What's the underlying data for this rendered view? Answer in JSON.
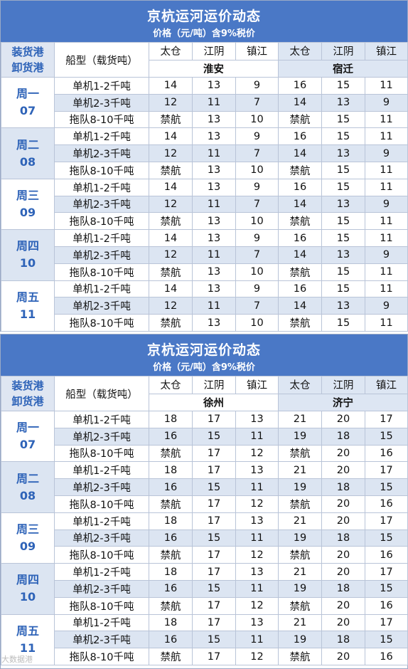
{
  "header_labels": {
    "port_label_1": "装货港",
    "port_label_2": "卸货港",
    "ship_type": "船型（载货吨）",
    "load_ports": [
      "太仓",
      "江阴",
      "镇江"
    ]
  },
  "ship_types": [
    "单机1-2千吨",
    "单机2-3千吨",
    "拖队8-10千吨"
  ],
  "panels": [
    {
      "title": "京杭运河运价动态",
      "subtitle": "价格（元/吨）含9%税价",
      "destinations": [
        "淮安",
        "宿迁"
      ],
      "days": [
        {
          "name": "周一",
          "date": "07"
        },
        {
          "name": "周二",
          "date": "08"
        },
        {
          "name": "周三",
          "date": "09"
        },
        {
          "name": "周四",
          "date": "10"
        },
        {
          "name": "周五",
          "date": "11"
        }
      ],
      "rows": [
        [
          "14",
          "13",
          "9",
          "16",
          "15",
          "11"
        ],
        [
          "12",
          "11",
          "7",
          "14",
          "13",
          "9"
        ],
        [
          "禁航",
          "13",
          "10",
          "禁航",
          "15",
          "11"
        ]
      ]
    },
    {
      "title": "京杭运河运价动态",
      "subtitle": "价格（元/吨）含9%税价",
      "destinations": [
        "徐州",
        "济宁"
      ],
      "days": [
        {
          "name": "周一",
          "date": "07"
        },
        {
          "name": "周二",
          "date": "08"
        },
        {
          "name": "周三",
          "date": "09"
        },
        {
          "name": "周四",
          "date": "10"
        },
        {
          "name": "周五",
          "date": "11"
        }
      ],
      "rows": [
        [
          "18",
          "17",
          "13",
          "21",
          "20",
          "17"
        ],
        [
          "16",
          "15",
          "11",
          "19",
          "18",
          "15"
        ],
        [
          "禁航",
          "17",
          "12",
          "禁航",
          "20",
          "16"
        ]
      ]
    }
  ],
  "watermark": "大数据港"
}
